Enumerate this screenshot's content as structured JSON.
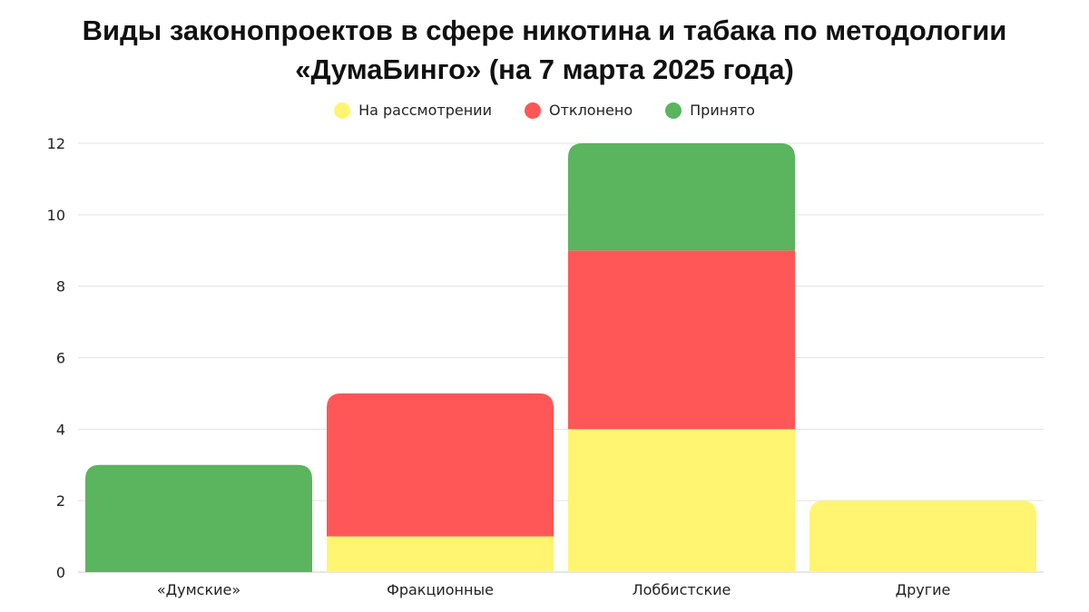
{
  "title_line1": "Виды законопроектов в сфере никотина и табака по методологии",
  "title_line2": "«ДумаБинго» (на 7 марта 2025 года)",
  "chart_data": {
    "type": "bar",
    "stacked": true,
    "categories": [
      "«Думские»",
      "Фракционные",
      "Лоббистские",
      "Другие"
    ],
    "series": [
      {
        "name": "На рассмотрении",
        "color": "#fff571",
        "values": [
          0,
          1,
          4,
          2
        ]
      },
      {
        "name": "Отклонено",
        "color": "#ff5757",
        "values": [
          0,
          4,
          5,
          0
        ]
      },
      {
        "name": "Принято",
        "color": "#5bb45e",
        "values": [
          3,
          0,
          3,
          0
        ]
      }
    ],
    "ylim": [
      0,
      12
    ],
    "yticks": [
      "0",
      "2",
      "4",
      "6",
      "8",
      "10",
      "12"
    ],
    "xlabel": "",
    "ylabel": "",
    "grid": true,
    "legend_position": "top-center"
  }
}
